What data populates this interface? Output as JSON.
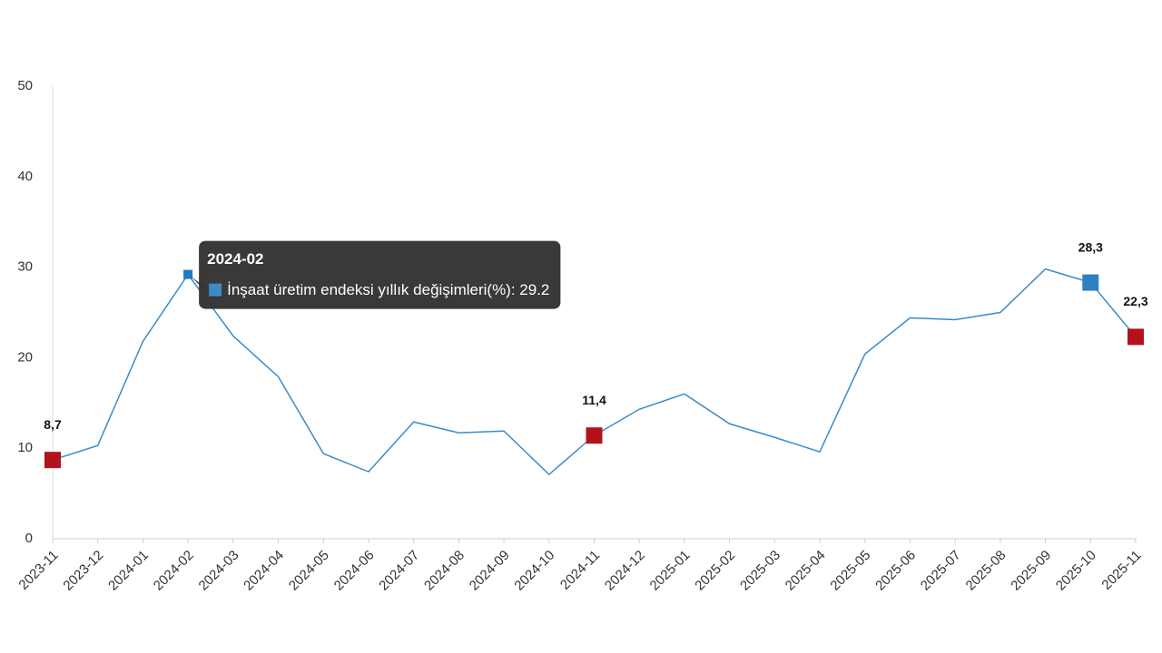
{
  "chart_data": {
    "type": "line",
    "categories": [
      "2023-11",
      "2023-12",
      "2024-01",
      "2024-02",
      "2024-03",
      "2024-04",
      "2024-05",
      "2024-06",
      "2024-07",
      "2024-08",
      "2024-09",
      "2024-10",
      "2024-11",
      "2024-12",
      "2025-01",
      "2025-02",
      "2025-03",
      "2025-04",
      "2025-05",
      "2025-06",
      "2025-07",
      "2025-08",
      "2025-09",
      "2025-10",
      "2025-11"
    ],
    "series": [
      {
        "name": "İnşaat üretim endeksi yıllık değişimleri(%)",
        "color": "#3b8bc6",
        "values": [
          8.7,
          10.3,
          21.8,
          29.2,
          22.4,
          17.9,
          9.4,
          7.4,
          12.9,
          11.7,
          11.9,
          7.1,
          11.4,
          14.3,
          16.0,
          12.7,
          11.2,
          9.6,
          20.4,
          24.4,
          24.2,
          25.0,
          29.8,
          28.3,
          22.3
        ],
        "value_labels": [
          "8,7",
          null,
          null,
          null,
          null,
          null,
          null,
          null,
          null,
          null,
          null,
          null,
          "11,4",
          null,
          null,
          null,
          null,
          null,
          null,
          null,
          null,
          null,
          null,
          "28,3",
          "22,3"
        ],
        "marker_colors": [
          "#b3121c",
          null,
          null,
          "#1f7ac4",
          null,
          null,
          null,
          null,
          null,
          null,
          null,
          null,
          "#b3121c",
          null,
          null,
          null,
          null,
          null,
          null,
          null,
          null,
          null,
          null,
          "#2f80c0",
          "#b3121c"
        ]
      }
    ],
    "ylim": [
      0,
      50
    ],
    "yticks": [
      0,
      10,
      20,
      30,
      40,
      50
    ],
    "grid": false,
    "tooltip": {
      "category": "2024-02",
      "label": "İnşaat üretim endeksi yıllık değişimleri(%): 29.2"
    }
  }
}
